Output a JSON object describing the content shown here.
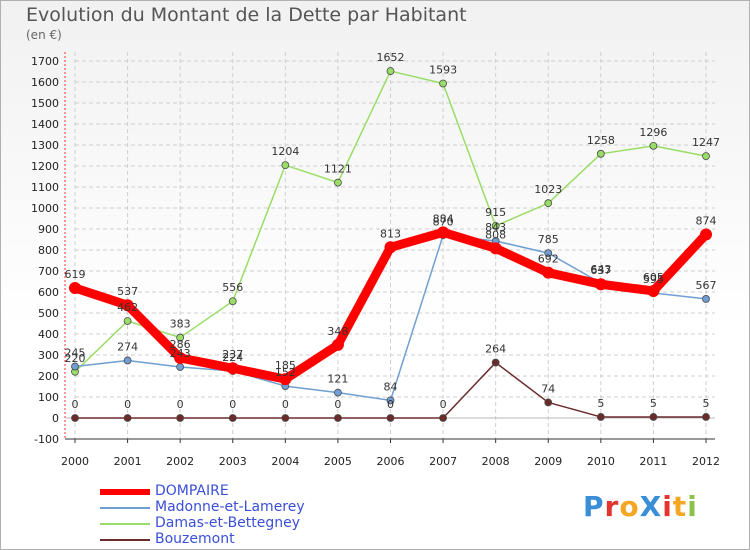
{
  "chart_data": {
    "type": "line",
    "title": "Evolution du Montant de la Dette par Habitant",
    "subtitle": "(en €)",
    "categories": [
      "2000",
      "2001",
      "2002",
      "2003",
      "2004",
      "2005",
      "2006",
      "2007",
      "2008",
      "2009",
      "2010",
      "2011",
      "2012"
    ],
    "ylim": [
      -100,
      1700
    ],
    "yticks": [
      -100,
      0,
      100,
      200,
      300,
      400,
      500,
      600,
      700,
      800,
      900,
      1000,
      1100,
      1200,
      1300,
      1400,
      1500,
      1600,
      1700
    ],
    "grid": true,
    "legend_position": "bottom-left",
    "series": [
      {
        "name": "DOMPAIRE",
        "color": "#ff0000",
        "values": [
          619,
          537,
          286,
          237,
          185,
          348,
          813,
          884,
          808,
          692,
          637,
          605,
          874
        ]
      },
      {
        "name": "Madonne-et-Lamerey",
        "color": "#6f9fd2",
        "values": [
          245,
          274,
          243,
          224,
          152,
          121,
          84,
          870,
          843,
          785,
          643,
          595,
          567
        ]
      },
      {
        "name": "Damas-et-Bettegney",
        "color": "#99dd66",
        "values": [
          220,
          462,
          383,
          556,
          1204,
          1121,
          1652,
          1593,
          915,
          1023,
          1258,
          1296,
          1247
        ]
      },
      {
        "name": "Bouzemont",
        "color": "#6b2b2b",
        "values": [
          0,
          0,
          0,
          0,
          0,
          0,
          0,
          0,
          264,
          74,
          5,
          5,
          5
        ]
      }
    ]
  },
  "logo": {
    "text": "ProXiti",
    "colors": [
      "#3a8ed8",
      "#e3342f",
      "#f5a623",
      "#3a8ed8",
      "#e3342f",
      "#f5a623",
      "#8bc34a"
    ]
  }
}
